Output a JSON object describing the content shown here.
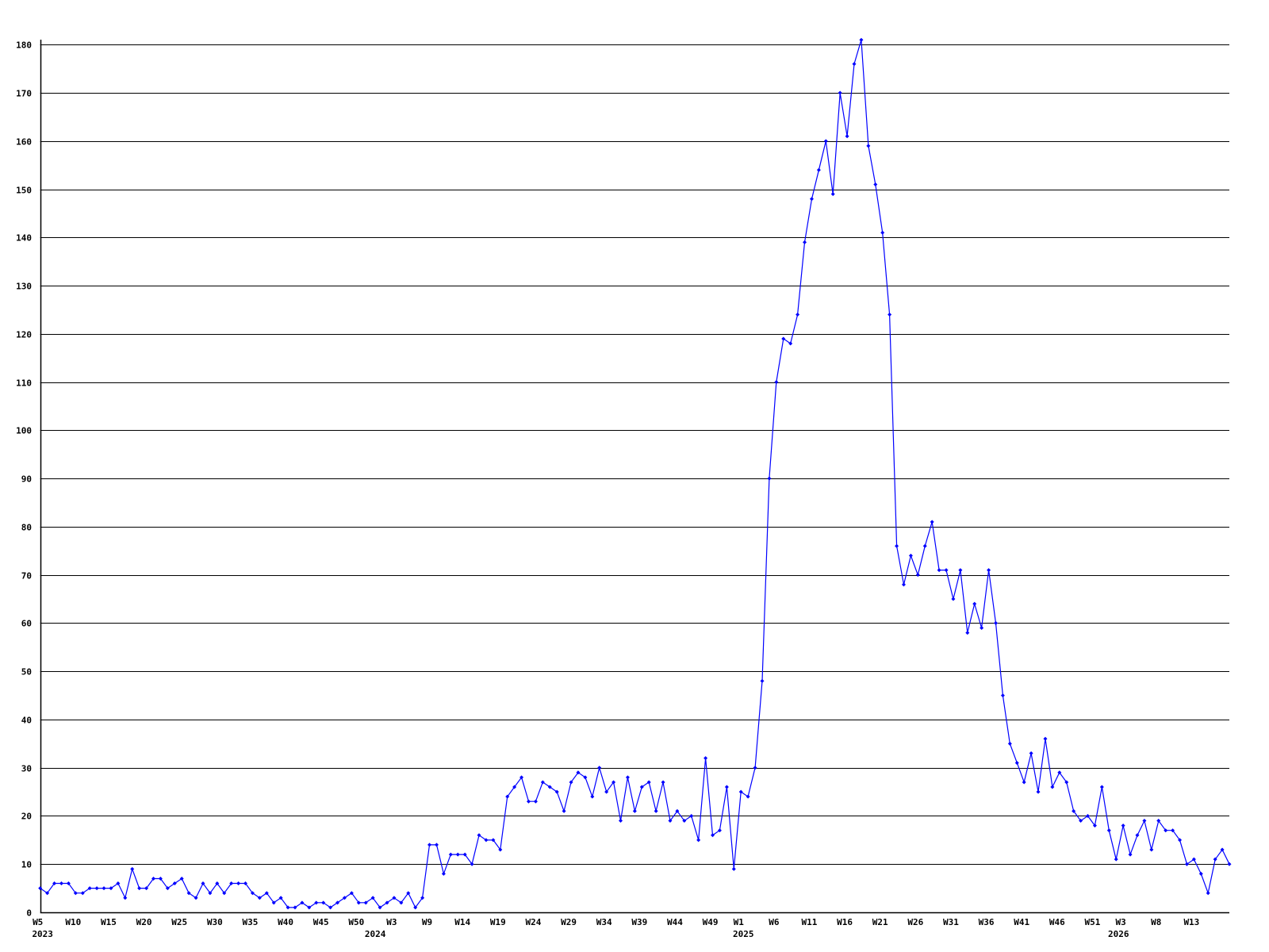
{
  "chart_data": {
    "type": "line",
    "title": "",
    "xlabel": "",
    "ylabel": "",
    "ylim": [
      0,
      180
    ],
    "yticks": [
      0,
      10,
      20,
      30,
      40,
      50,
      60,
      70,
      80,
      90,
      100,
      110,
      120,
      130,
      140,
      150,
      160,
      170,
      180
    ],
    "grid": "horizontal",
    "line_color": "#0000ff",
    "grid_color": "#000000",
    "x_tick_labels": [
      {
        "index": 0,
        "label": "W5"
      },
      {
        "index": 5,
        "label": "W10"
      },
      {
        "index": 10,
        "label": "W15"
      },
      {
        "index": 15,
        "label": "W20"
      },
      {
        "index": 20,
        "label": "W25"
      },
      {
        "index": 25,
        "label": "W30"
      },
      {
        "index": 30,
        "label": "W35"
      },
      {
        "index": 35,
        "label": "W40"
      },
      {
        "index": 40,
        "label": "W45"
      },
      {
        "index": 45,
        "label": "W50"
      },
      {
        "index": 50,
        "label": "W3"
      },
      {
        "index": 55,
        "label": "W9"
      },
      {
        "index": 60,
        "label": "W14"
      },
      {
        "index": 65,
        "label": "W19"
      },
      {
        "index": 70,
        "label": "W24"
      },
      {
        "index": 75,
        "label": "W29"
      },
      {
        "index": 80,
        "label": "W34"
      },
      {
        "index": 85,
        "label": "W39"
      },
      {
        "index": 90,
        "label": "W44"
      },
      {
        "index": 95,
        "label": "W49"
      },
      {
        "index": 99,
        "label": "W1"
      },
      {
        "index": 104,
        "label": "W6"
      },
      {
        "index": 109,
        "label": "W11"
      },
      {
        "index": 114,
        "label": "W16"
      },
      {
        "index": 119,
        "label": "W21"
      },
      {
        "index": 124,
        "label": "W26"
      },
      {
        "index": 129,
        "label": "W31"
      },
      {
        "index": 134,
        "label": "W36"
      },
      {
        "index": 139,
        "label": "W41"
      },
      {
        "index": 144,
        "label": "W46"
      },
      {
        "index": 149,
        "label": "W51"
      },
      {
        "index": 153,
        "label": "W3"
      },
      {
        "index": 158,
        "label": "W8"
      },
      {
        "index": 163,
        "label": "W13"
      }
    ],
    "year_labels": [
      {
        "index": 0,
        "label": "2023"
      },
      {
        "index": 47,
        "label": "2024"
      },
      {
        "index": 99,
        "label": "2025"
      },
      {
        "index": 152,
        "label": "2026"
      }
    ],
    "values": [
      5,
      4,
      6,
      6,
      6,
      4,
      4,
      5,
      5,
      5,
      5,
      6,
      3,
      9,
      5,
      5,
      7,
      7,
      5,
      6,
      7,
      4,
      3,
      6,
      4,
      6,
      4,
      6,
      6,
      6,
      4,
      3,
      4,
      2,
      3,
      1,
      1,
      2,
      1,
      2,
      2,
      1,
      2,
      3,
      4,
      2,
      2,
      3,
      1,
      2,
      3,
      2,
      4,
      1,
      3,
      14,
      14,
      8,
      12,
      12,
      12,
      10,
      16,
      15,
      15,
      13,
      24,
      26,
      28,
      23,
      23,
      27,
      26,
      25,
      21,
      27,
      29,
      28,
      24,
      30,
      25,
      27,
      19,
      28,
      21,
      26,
      27,
      21,
      27,
      19,
      21,
      19,
      20,
      15,
      32,
      16,
      17,
      26,
      9,
      25,
      24,
      30,
      48,
      90,
      110,
      119,
      118,
      124,
      139,
      148,
      154,
      160,
      149,
      170,
      161,
      176,
      181,
      159,
      151,
      141,
      124,
      76,
      68,
      74,
      70,
      76,
      81,
      71,
      71,
      65,
      71,
      58,
      64,
      59,
      71,
      60,
      45,
      35,
      31,
      27,
      33,
      25,
      36,
      26,
      29,
      27,
      21,
      19,
      20,
      18,
      26,
      17,
      11,
      18,
      12,
      16,
      19,
      13,
      19,
      17,
      17,
      15,
      10,
      11,
      8,
      4,
      11,
      13,
      10
    ]
  }
}
